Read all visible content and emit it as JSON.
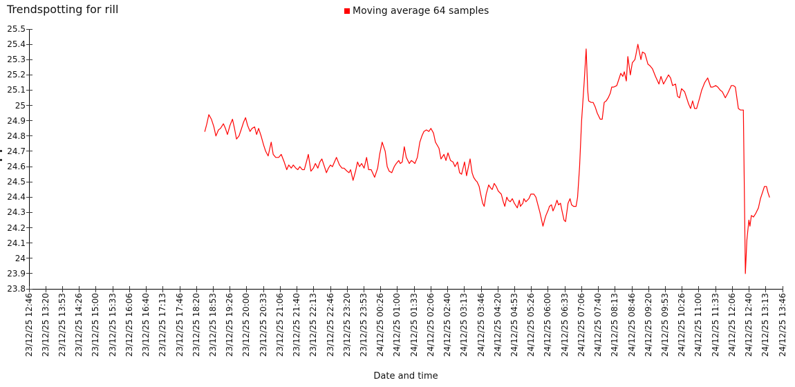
{
  "title": "Trendspotting for rill",
  "legend": {
    "label": "Moving average 64 samples",
    "marker_color": "#ff0000"
  },
  "chart_data": {
    "type": "line",
    "title": "Trendspotting for rill",
    "xlabel": "Date and time",
    "ylabel": "",
    "ylim": [
      23.8,
      25.5
    ],
    "grid": false,
    "legend_position": "top-center",
    "y_ticks": [
      "25.5",
      "25.4",
      "25.3",
      "25.2",
      "25.1",
      "25",
      "24.9",
      "24.8",
      "24.7",
      "24.6",
      "24.5",
      "24.4",
      "24.3",
      "24.2",
      "24.1",
      "24",
      "23.9",
      "23.8"
    ],
    "x_ticks": [
      "23/12/25 12:46",
      "23/12/25 13:20",
      "23/12/25 13:53",
      "23/12/25 14:26",
      "23/12/25 15:00",
      "23/12/25 15:33",
      "23/12/25 16:06",
      "23/12/25 16:40",
      "23/12/25 17:13",
      "23/12/25 17:46",
      "23/12/25 18:20",
      "23/12/25 18:53",
      "23/12/25 19:26",
      "23/12/25 20:00",
      "23/12/25 20:33",
      "23/12/25 21:06",
      "23/12/25 21:40",
      "23/12/25 22:13",
      "23/12/25 22:46",
      "23/12/25 23:20",
      "23/12/25 23:53",
      "24/12/25 00:26",
      "24/12/25 01:00",
      "24/12/25 01:33",
      "24/12/25 02:06",
      "24/12/25 02:40",
      "24/12/25 03:13",
      "24/12/25 03:46",
      "24/12/25 04:20",
      "24/12/25 04:53",
      "24/12/25 05:26",
      "24/12/25 06:00",
      "24/12/25 06:33",
      "24/12/25 07:06",
      "24/12/25 07:40",
      "24/12/25 08:13",
      "24/12/25 08:46",
      "24/12/25 09:20",
      "24/12/25 09:53",
      "24/12/25 10:26",
      "24/12/25 11:00",
      "24/12/25 11:33",
      "24/12/25 12:06",
      "24/12/25 12:40",
      "24/12/25 13:13",
      "24/12/25 13:46"
    ],
    "x_axis": {
      "start": "23/12/25 12:46",
      "end": "24/12/25 13:46",
      "total_minutes": 1500,
      "x_unit": "minutes since 23/12/25 12:46"
    },
    "series": [
      {
        "name": "Moving average 64 samples",
        "color": "#ff0000",
        "points": [
          [
            350,
            24.83
          ],
          [
            354,
            24.88
          ],
          [
            358,
            24.94
          ],
          [
            363,
            24.91
          ],
          [
            368,
            24.86
          ],
          [
            372,
            24.8
          ],
          [
            377,
            24.84
          ],
          [
            381,
            24.85
          ],
          [
            387,
            24.88
          ],
          [
            391,
            24.85
          ],
          [
            395,
            24.81
          ],
          [
            400,
            24.87
          ],
          [
            405,
            24.91
          ],
          [
            409,
            24.85
          ],
          [
            413,
            24.78
          ],
          [
            418,
            24.8
          ],
          [
            422,
            24.84
          ],
          [
            427,
            24.89
          ],
          [
            431,
            24.92
          ],
          [
            435,
            24.87
          ],
          [
            440,
            24.83
          ],
          [
            444,
            24.85
          ],
          [
            449,
            24.86
          ],
          [
            453,
            24.81
          ],
          [
            457,
            24.85
          ],
          [
            462,
            24.8
          ],
          [
            467,
            24.74
          ],
          [
            471,
            24.7
          ],
          [
            476,
            24.67
          ],
          [
            482,
            24.76
          ],
          [
            486,
            24.68
          ],
          [
            491,
            24.66
          ],
          [
            497,
            24.66
          ],
          [
            502,
            24.68
          ],
          [
            508,
            24.63
          ],
          [
            513,
            24.58
          ],
          [
            517,
            24.61
          ],
          [
            522,
            24.59
          ],
          [
            526,
            24.61
          ],
          [
            531,
            24.59
          ],
          [
            535,
            24.58
          ],
          [
            539,
            24.6
          ],
          [
            544,
            24.58
          ],
          [
            548,
            24.58
          ],
          [
            553,
            24.64
          ],
          [
            556,
            24.68
          ],
          [
            561,
            24.57
          ],
          [
            566,
            24.59
          ],
          [
            570,
            24.62
          ],
          [
            575,
            24.59
          ],
          [
            579,
            24.63
          ],
          [
            583,
            24.65
          ],
          [
            588,
            24.6
          ],
          [
            592,
            24.56
          ],
          [
            596,
            24.59
          ],
          [
            600,
            24.61
          ],
          [
            604,
            24.6
          ],
          [
            608,
            24.63
          ],
          [
            612,
            24.66
          ],
          [
            618,
            24.61
          ],
          [
            623,
            24.59
          ],
          [
            627,
            24.59
          ],
          [
            633,
            24.57
          ],
          [
            637,
            24.56
          ],
          [
            640,
            24.58
          ],
          [
            645,
            24.51
          ],
          [
            650,
            24.57
          ],
          [
            654,
            24.63
          ],
          [
            658,
            24.6
          ],
          [
            662,
            24.62
          ],
          [
            667,
            24.59
          ],
          [
            672,
            24.66
          ],
          [
            676,
            24.58
          ],
          [
            681,
            24.58
          ],
          [
            688,
            24.53
          ],
          [
            694,
            24.59
          ],
          [
            698,
            24.68
          ],
          [
            703,
            24.76
          ],
          [
            709,
            24.7
          ],
          [
            713,
            24.6
          ],
          [
            717,
            24.57
          ],
          [
            722,
            24.56
          ],
          [
            727,
            24.6
          ],
          [
            731,
            24.62
          ],
          [
            736,
            24.64
          ],
          [
            739,
            24.62
          ],
          [
            743,
            24.63
          ],
          [
            747,
            24.73
          ],
          [
            751,
            24.66
          ],
          [
            757,
            24.62
          ],
          [
            761,
            24.64
          ],
          [
            765,
            24.63
          ],
          [
            768,
            24.62
          ],
          [
            773,
            24.66
          ],
          [
            778,
            24.76
          ],
          [
            782,
            24.8
          ],
          [
            786,
            24.83
          ],
          [
            791,
            24.84
          ],
          [
            796,
            24.83
          ],
          [
            800,
            24.85
          ],
          [
            805,
            24.82
          ],
          [
            809,
            24.76
          ],
          [
            816,
            24.72
          ],
          [
            820,
            24.65
          ],
          [
            826,
            24.68
          ],
          [
            830,
            24.64
          ],
          [
            834,
            24.69
          ],
          [
            839,
            24.64
          ],
          [
            844,
            24.63
          ],
          [
            848,
            24.6
          ],
          [
            853,
            24.63
          ],
          [
            857,
            24.56
          ],
          [
            861,
            24.55
          ],
          [
            867,
            24.63
          ],
          [
            871,
            24.54
          ],
          [
            878,
            24.65
          ],
          [
            882,
            24.56
          ],
          [
            885,
            24.53
          ],
          [
            889,
            24.51
          ],
          [
            892,
            24.5
          ],
          [
            896,
            24.47
          ],
          [
            899,
            24.42
          ],
          [
            903,
            24.36
          ],
          [
            906,
            24.34
          ],
          [
            910,
            24.42
          ],
          [
            915,
            24.48
          ],
          [
            919,
            24.46
          ],
          [
            922,
            24.45
          ],
          [
            926,
            24.49
          ],
          [
            930,
            24.47
          ],
          [
            934,
            24.44
          ],
          [
            940,
            24.42
          ],
          [
            944,
            24.37
          ],
          [
            947,
            24.34
          ],
          [
            951,
            24.4
          ],
          [
            954,
            24.38
          ],
          [
            958,
            24.37
          ],
          [
            962,
            24.39
          ],
          [
            966,
            24.36
          ],
          [
            972,
            24.33
          ],
          [
            976,
            24.38
          ],
          [
            978,
            24.34
          ],
          [
            983,
            24.36
          ],
          [
            985,
            24.39
          ],
          [
            989,
            24.37
          ],
          [
            995,
            24.39
          ],
          [
            999,
            24.42
          ],
          [
            1005,
            24.42
          ],
          [
            1009,
            24.4
          ],
          [
            1013,
            24.35
          ],
          [
            1017,
            24.3
          ],
          [
            1023,
            24.21
          ],
          [
            1027,
            24.26
          ],
          [
            1029,
            24.28
          ],
          [
            1034,
            24.32
          ],
          [
            1036,
            24.34
          ],
          [
            1040,
            24.35
          ],
          [
            1043,
            24.31
          ],
          [
            1047,
            24.34
          ],
          [
            1051,
            24.38
          ],
          [
            1054,
            24.35
          ],
          [
            1058,
            24.36
          ],
          [
            1061,
            24.31
          ],
          [
            1065,
            24.25
          ],
          [
            1068,
            24.24
          ],
          [
            1073,
            24.36
          ],
          [
            1077,
            24.39
          ],
          [
            1080,
            24.35
          ],
          [
            1084,
            24.34
          ],
          [
            1089,
            24.34
          ],
          [
            1092,
            24.4
          ],
          [
            1096,
            24.6
          ],
          [
            1100,
            24.9
          ],
          [
            1105,
            25.15
          ],
          [
            1109,
            25.37
          ],
          [
            1112,
            25.1
          ],
          [
            1114,
            25.03
          ],
          [
            1119,
            25.02
          ],
          [
            1123,
            25.02
          ],
          [
            1127,
            24.99
          ],
          [
            1131,
            24.95
          ],
          [
            1137,
            24.91
          ],
          [
            1141,
            24.91
          ],
          [
            1145,
            25.02
          ],
          [
            1149,
            25.03
          ],
          [
            1153,
            25.05
          ],
          [
            1157,
            25.08
          ],
          [
            1160,
            25.12
          ],
          [
            1164,
            25.12
          ],
          [
            1170,
            25.13
          ],
          [
            1174,
            25.17
          ],
          [
            1178,
            25.21
          ],
          [
            1182,
            25.19
          ],
          [
            1185,
            25.22
          ],
          [
            1189,
            25.16
          ],
          [
            1192,
            25.32
          ],
          [
            1197,
            25.2
          ],
          [
            1201,
            25.28
          ],
          [
            1206,
            25.3
          ],
          [
            1208,
            25.33
          ],
          [
            1212,
            25.4
          ],
          [
            1218,
            25.3
          ],
          [
            1221,
            25.35
          ],
          [
            1226,
            25.34
          ],
          [
            1232,
            25.27
          ],
          [
            1236,
            25.26
          ],
          [
            1241,
            25.24
          ],
          [
            1247,
            25.19
          ],
          [
            1254,
            25.14
          ],
          [
            1258,
            25.19
          ],
          [
            1263,
            25.14
          ],
          [
            1268,
            25.17
          ],
          [
            1273,
            25.2
          ],
          [
            1277,
            25.18
          ],
          [
            1281,
            25.13
          ],
          [
            1287,
            25.14
          ],
          [
            1291,
            25.06
          ],
          [
            1295,
            25.05
          ],
          [
            1299,
            25.11
          ],
          [
            1305,
            25.09
          ],
          [
            1309,
            25.05
          ],
          [
            1313,
            25.01
          ],
          [
            1317,
            24.98
          ],
          [
            1321,
            25.03
          ],
          [
            1325,
            24.98
          ],
          [
            1329,
            24.98
          ],
          [
            1335,
            25.05
          ],
          [
            1339,
            25.1
          ],
          [
            1345,
            25.15
          ],
          [
            1351,
            25.18
          ],
          [
            1357,
            25.12
          ],
          [
            1361,
            25.12
          ],
          [
            1367,
            25.13
          ],
          [
            1371,
            25.12
          ],
          [
            1376,
            25.1
          ],
          [
            1380,
            25.09
          ],
          [
            1386,
            25.05
          ],
          [
            1391,
            25.08
          ],
          [
            1398,
            25.13
          ],
          [
            1402,
            25.13
          ],
          [
            1406,
            25.12
          ],
          [
            1412,
            24.98
          ],
          [
            1416,
            24.97
          ],
          [
            1422,
            24.97
          ],
          [
            1426,
            23.9
          ],
          [
            1429,
            24.12
          ],
          [
            1433,
            24.25
          ],
          [
            1435,
            24.21
          ],
          [
            1438,
            24.28
          ],
          [
            1442,
            24.27
          ],
          [
            1446,
            24.29
          ],
          [
            1452,
            24.33
          ],
          [
            1456,
            24.39
          ],
          [
            1460,
            24.43
          ],
          [
            1464,
            24.47
          ],
          [
            1468,
            24.47
          ],
          [
            1471,
            24.43
          ],
          [
            1474,
            24.4
          ]
        ]
      }
    ]
  }
}
